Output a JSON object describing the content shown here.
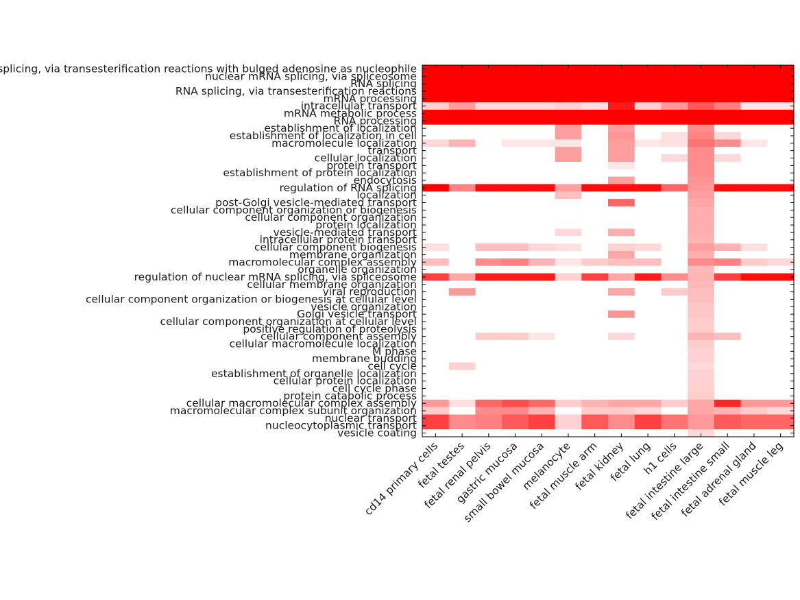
{
  "chart_data": {
    "type": "heatmap",
    "color_scale": {
      "low": "#ffffff",
      "high": "#ff0000"
    },
    "x_categories": [
      "cd14 primary cells",
      "fetal testes",
      "fetal renal pelvis",
      "gastric mucosa",
      "small bowel mucosa",
      "melanocyte",
      "fetal muscle arm",
      "fetal kidney",
      "fetal lung",
      "h1 cells",
      "fetal intestine large",
      "fetal intestine small",
      "fetal adrenal gland",
      "fetal muscle leg"
    ],
    "y_categories": [
      "RNA splicing, via transesterification reactions with bulged adenosine as nucleophile",
      "nuclear mRNA splicing, via spliceosome",
      "RNA splicing",
      "RNA splicing, via transesterification reactions",
      "mRNA processing",
      "intracellular transport",
      "mRNA metabolic process",
      "RNA processing",
      "establishment of localization",
      "establishment of localization in cell",
      "macromolecule localization",
      "transport",
      "cellular localization",
      "protein transport",
      "establishment of protein localization",
      "endocytosis",
      "regulation of RNA splicing",
      "localization",
      "post-Golgi vesicle-mediated transport",
      "cellular component organization or biogenesis",
      "cellular component organization",
      "protein localization",
      "vesicle-mediated transport",
      "intracellular protein transport",
      "cellular component biogenesis",
      "membrane organization",
      "macromolecular complex assembly",
      "organelle organization",
      "regulation of nuclear mRNA splicing, via spliceosome",
      "cellular membrane organization",
      "viral reproduction",
      "cellular component organization or biogenesis at cellular level",
      "vesicle organization",
      "Golgi vesicle transport",
      "cellular component organization at cellular level",
      "positive regulation of proteolysis",
      "cellular component assembly",
      "cellular macromolecule localization",
      "M phase",
      "membrane budding",
      "cell cycle",
      "establishment of organelle localization",
      "cellular protein localization",
      "cell cycle phase",
      "protein catabolic process",
      "cellular macromolecular complex assembly",
      "macromolecular complex subunit organization",
      "nuclear transport",
      "nucleocytoplasmic transport",
      "vesicle coating"
    ],
    "values": [
      [
        1,
        1,
        1,
        1,
        1,
        1,
        1,
        1,
        1,
        1,
        1,
        1,
        1,
        1
      ],
      [
        1,
        1,
        1,
        1,
        1,
        1,
        1,
        1,
        1,
        1,
        1,
        1,
        1,
        1
      ],
      [
        1,
        1,
        1,
        1,
        1,
        1,
        1,
        1,
        1,
        1,
        1,
        1,
        1,
        1
      ],
      [
        1,
        1,
        1,
        1,
        1,
        1,
        1,
        1,
        1,
        1,
        1,
        1,
        1,
        1
      ],
      [
        1,
        1,
        1,
        1,
        1,
        1,
        1,
        1,
        1,
        1,
        1,
        1,
        1,
        1
      ],
      [
        0.18,
        0.38,
        0.14,
        0.14,
        0.14,
        0.18,
        0.12,
        0.9,
        0.18,
        0.4,
        0.65,
        0.5,
        0.1,
        0.1
      ],
      [
        1,
        1,
        1,
        1,
        1,
        1,
        1,
        1,
        1,
        1,
        1,
        1,
        1,
        1
      ],
      [
        1,
        1,
        1,
        1,
        1,
        1,
        1,
        1,
        1,
        1,
        1,
        1,
        1,
        1
      ],
      [
        0,
        0,
        0,
        0,
        0,
        0.38,
        0,
        0.38,
        0,
        0,
        0.45,
        0,
        0,
        0
      ],
      [
        0,
        0,
        0,
        0,
        0,
        0.38,
        0,
        0.42,
        0,
        0.12,
        0.48,
        0.15,
        0,
        0
      ],
      [
        0.15,
        0.3,
        0,
        0.1,
        0.1,
        0.1,
        0,
        0.38,
        0.1,
        0.12,
        0.55,
        0.45,
        0.1,
        0
      ],
      [
        0,
        0,
        0,
        0,
        0,
        0.38,
        0,
        0.38,
        0,
        0,
        0.45,
        0,
        0,
        0
      ],
      [
        0,
        0,
        0,
        0,
        0,
        0.38,
        0,
        0.38,
        0,
        0.15,
        0.45,
        0.15,
        0,
        0
      ],
      [
        0,
        0,
        0,
        0,
        0,
        0,
        0,
        0.1,
        0,
        0,
        0.45,
        0,
        0,
        0
      ],
      [
        0,
        0,
        0,
        0,
        0,
        0,
        0,
        0,
        0,
        0,
        0.45,
        0,
        0,
        0
      ],
      [
        0,
        0,
        0,
        0,
        0,
        0,
        0,
        0.38,
        0,
        0,
        0.42,
        0,
        0,
        0
      ],
      [
        1,
        0.48,
        0.95,
        0.95,
        0.95,
        0.38,
        0.95,
        0.95,
        0.95,
        0.6,
        0.4,
        0.95,
        0.95,
        0.95
      ],
      [
        0,
        0,
        0,
        0,
        0,
        0.25,
        0,
        0,
        0,
        0,
        0.38,
        0,
        0,
        0
      ],
      [
        0,
        0,
        0,
        0,
        0,
        0,
        0,
        0.6,
        0,
        0,
        0.35,
        0,
        0,
        0
      ],
      [
        0,
        0,
        0,
        0,
        0,
        0,
        0,
        0,
        0,
        0,
        0.32,
        0,
        0,
        0
      ],
      [
        0,
        0,
        0,
        0,
        0,
        0,
        0,
        0,
        0,
        0,
        0.32,
        0,
        0,
        0
      ],
      [
        0,
        0,
        0,
        0,
        0,
        0,
        0,
        0,
        0,
        0,
        0.32,
        0,
        0,
        0
      ],
      [
        0,
        0,
        0,
        0,
        0,
        0.15,
        0,
        0.32,
        0,
        0,
        0.32,
        0,
        0,
        0
      ],
      [
        0,
        0,
        0,
        0,
        0,
        0,
        0,
        0,
        0,
        0,
        0.3,
        0,
        0,
        0
      ],
      [
        0.12,
        0,
        0.25,
        0.25,
        0.15,
        0.12,
        0,
        0.18,
        0.15,
        0,
        0.38,
        0.3,
        0.12,
        0
      ],
      [
        0,
        0,
        0,
        0,
        0,
        0,
        0,
        0.35,
        0,
        0,
        0.32,
        0,
        0,
        0
      ],
      [
        0.25,
        0,
        0.45,
        0.5,
        0.3,
        0.1,
        0.2,
        0.25,
        0.25,
        0,
        0.45,
        0.5,
        0.2,
        0.15
      ],
      [
        0,
        0,
        0,
        0,
        0,
        0,
        0,
        0,
        0,
        0,
        0.28,
        0,
        0,
        0
      ],
      [
        0.75,
        0.35,
        0.9,
        0.9,
        0.9,
        0.18,
        0.75,
        0.35,
        0.9,
        0.45,
        0.3,
        0.75,
        0.95,
        0.95
      ],
      [
        0,
        0,
        0,
        0,
        0,
        0,
        0,
        0,
        0,
        0,
        0.28,
        0,
        0,
        0
      ],
      [
        0,
        0.4,
        0,
        0,
        0,
        0,
        0,
        0.35,
        0,
        0.2,
        0.25,
        0,
        0,
        0
      ],
      [
        0,
        0,
        0,
        0,
        0,
        0,
        0,
        0,
        0,
        0,
        0.25,
        0,
        0,
        0
      ],
      [
        0,
        0,
        0,
        0,
        0,
        0,
        0,
        0,
        0,
        0,
        0.22,
        0,
        0,
        0
      ],
      [
        0,
        0,
        0,
        0,
        0,
        0,
        0,
        0.42,
        0,
        0,
        0.22,
        0,
        0,
        0
      ],
      [
        0,
        0,
        0,
        0,
        0,
        0,
        0,
        0,
        0,
        0,
        0.2,
        0,
        0,
        0
      ],
      [
        0,
        0,
        0,
        0,
        0,
        0,
        0,
        0,
        0,
        0,
        0.2,
        0,
        0,
        0
      ],
      [
        0,
        0,
        0.2,
        0.2,
        0.1,
        0,
        0,
        0.15,
        0,
        0,
        0.3,
        0.25,
        0,
        0
      ],
      [
        0,
        0,
        0,
        0,
        0,
        0,
        0,
        0,
        0,
        0,
        0.2,
        0,
        0,
        0
      ],
      [
        0,
        0,
        0,
        0,
        0,
        0,
        0,
        0,
        0,
        0,
        0.18,
        0,
        0,
        0
      ],
      [
        0,
        0,
        0,
        0,
        0,
        0,
        0,
        0,
        0,
        0,
        0.18,
        0,
        0,
        0
      ],
      [
        0,
        0.18,
        0,
        0,
        0,
        0,
        0,
        0,
        0,
        0,
        0.15,
        0,
        0,
        0
      ],
      [
        0,
        0,
        0,
        0,
        0,
        0,
        0,
        0,
        0,
        0,
        0.18,
        0,
        0,
        0
      ],
      [
        0,
        0,
        0,
        0,
        0,
        0,
        0,
        0,
        0,
        0,
        0.18,
        0,
        0,
        0
      ],
      [
        0,
        0,
        0,
        0,
        0,
        0,
        0,
        0,
        0,
        0,
        0.18,
        0,
        0,
        0
      ],
      [
        0,
        0,
        0,
        0,
        0,
        0,
        0,
        0,
        0,
        0,
        0.2,
        0,
        0,
        0
      ],
      [
        0.4,
        0.12,
        0.6,
        0.7,
        0.6,
        0.2,
        0.3,
        0.35,
        0.35,
        0.2,
        0.35,
        0.85,
        0.4,
        0.4
      ],
      [
        0.2,
        0,
        0.45,
        0.45,
        0.3,
        0,
        0.2,
        0.2,
        0.15,
        0,
        0.35,
        0.3,
        0.2,
        0.15
      ],
      [
        0.75,
        0.45,
        0.5,
        0.65,
        0.75,
        0.18,
        0.65,
        0.45,
        0.75,
        0.55,
        0.4,
        0.65,
        0.6,
        0.6
      ],
      [
        0.75,
        0.45,
        0.5,
        0.65,
        0.75,
        0.18,
        0.65,
        0.45,
        0.75,
        0.55,
        0.4,
        0.65,
        0.6,
        0.6
      ],
      [
        0,
        0,
        0,
        0,
        0,
        0,
        0,
        0,
        0,
        0,
        0.15,
        0,
        0,
        0
      ]
    ]
  }
}
